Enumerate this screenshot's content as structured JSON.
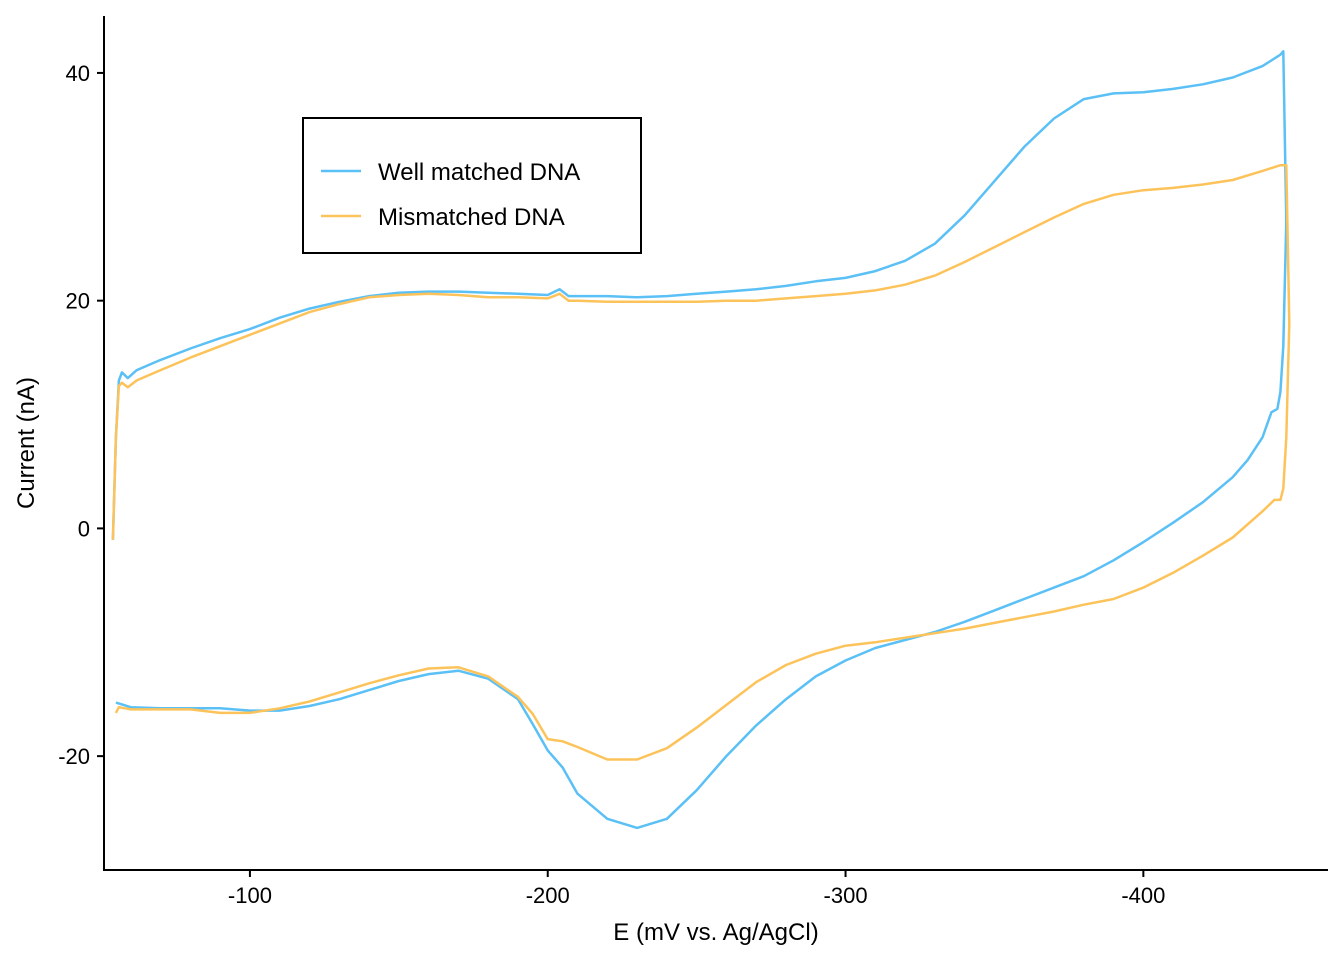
{
  "chart_data": {
    "type": "line",
    "xlabel": "E (mV vs. Ag/AgCl)",
    "ylabel": "Current (nA)",
    "xlim": [
      -51,
      -462
    ],
    "ylim": [
      -30,
      45
    ],
    "x_ticks": [
      -100,
      -200,
      -300,
      -400
    ],
    "y_ticks": [
      -20,
      0,
      20,
      40
    ],
    "x_tick_labels": [
      "-100",
      "-200",
      "-300",
      "-400"
    ],
    "y_tick_labels": [
      "-20",
      "0",
      "20",
      "40"
    ],
    "grid": false,
    "legend_position": "top-left",
    "series": [
      {
        "name": "Well matched DNA",
        "color": "#5BC0F5",
        "points": [
          [
            -54,
            -1
          ],
          [
            -55,
            8
          ],
          [
            -56,
            13
          ],
          [
            -57,
            13.7
          ],
          [
            -59,
            13.2
          ],
          [
            -62,
            13.9
          ],
          [
            -70,
            14.8
          ],
          [
            -80,
            15.8
          ],
          [
            -90,
            16.7
          ],
          [
            -100,
            17.5
          ],
          [
            -110,
            18.5
          ],
          [
            -120,
            19.3
          ],
          [
            -130,
            19.9
          ],
          [
            -140,
            20.4
          ],
          [
            -150,
            20.7
          ],
          [
            -160,
            20.8
          ],
          [
            -170,
            20.8
          ],
          [
            -180,
            20.7
          ],
          [
            -190,
            20.6
          ],
          [
            -200,
            20.5
          ],
          [
            -204,
            21.0
          ],
          [
            -207,
            20.4
          ],
          [
            -210,
            20.4
          ],
          [
            -220,
            20.4
          ],
          [
            -230,
            20.3
          ],
          [
            -240,
            20.4
          ],
          [
            -250,
            20.6
          ],
          [
            -260,
            20.8
          ],
          [
            -270,
            21.0
          ],
          [
            -280,
            21.3
          ],
          [
            -290,
            21.7
          ],
          [
            -300,
            22.0
          ],
          [
            -310,
            22.6
          ],
          [
            -320,
            23.5
          ],
          [
            -330,
            25.0
          ],
          [
            -340,
            27.5
          ],
          [
            -350,
            30.5
          ],
          [
            -360,
            33.5
          ],
          [
            -370,
            36.0
          ],
          [
            -380,
            37.7
          ],
          [
            -390,
            38.2
          ],
          [
            -400,
            38.3
          ],
          [
            -410,
            38.6
          ],
          [
            -420,
            39.0
          ],
          [
            -430,
            39.6
          ],
          [
            -440,
            40.6
          ],
          [
            -446,
            41.6
          ],
          [
            -447,
            41.9
          ],
          [
            -448,
            27
          ],
          [
            -447,
            16
          ],
          [
            -446,
            12
          ],
          [
            -445,
            10.5
          ],
          [
            -443,
            10.2
          ],
          [
            -440,
            8
          ],
          [
            -435,
            6
          ],
          [
            -430,
            4.5
          ],
          [
            -420,
            2.3
          ],
          [
            -410,
            0.5
          ],
          [
            -400,
            -1.2
          ],
          [
            -390,
            -2.8
          ],
          [
            -380,
            -4.2
          ],
          [
            -370,
            -5.2
          ],
          [
            -360,
            -6.2
          ],
          [
            -350,
            -7.2
          ],
          [
            -340,
            -8.2
          ],
          [
            -330,
            -9.1
          ],
          [
            -320,
            -9.8
          ],
          [
            -310,
            -10.5
          ],
          [
            -300,
            -11.6
          ],
          [
            -290,
            -13.0
          ],
          [
            -280,
            -15.0
          ],
          [
            -270,
            -17.3
          ],
          [
            -260,
            -20.0
          ],
          [
            -250,
            -23.0
          ],
          [
            -240,
            -25.5
          ],
          [
            -230,
            -26.3
          ],
          [
            -220,
            -25.5
          ],
          [
            -210,
            -23.3
          ],
          [
            -205,
            -21.0
          ],
          [
            -200,
            -19.5
          ],
          [
            -195,
            -17.2
          ],
          [
            -190,
            -15.0
          ],
          [
            -180,
            -13.2
          ],
          [
            -170,
            -12.5
          ],
          [
            -160,
            -12.8
          ],
          [
            -150,
            -13.4
          ],
          [
            -140,
            -14.2
          ],
          [
            -130,
            -15.0
          ],
          [
            -120,
            -15.6
          ],
          [
            -110,
            -16.0
          ],
          [
            -100,
            -16.0
          ],
          [
            -90,
            -15.8
          ],
          [
            -80,
            -15.8
          ],
          [
            -70,
            -15.8
          ],
          [
            -60,
            -15.7
          ],
          [
            -55,
            -15.3
          ]
        ]
      },
      {
        "name": "Mismatched DNA",
        "color": "#FDC35B",
        "points": [
          [
            -54,
            -1
          ],
          [
            -55,
            8
          ],
          [
            -56,
            12.5
          ],
          [
            -57,
            12.8
          ],
          [
            -59,
            12.4
          ],
          [
            -62,
            13.0
          ],
          [
            -70,
            13.9
          ],
          [
            -80,
            15.0
          ],
          [
            -90,
            16.0
          ],
          [
            -100,
            17.0
          ],
          [
            -110,
            18.0
          ],
          [
            -120,
            19.0
          ],
          [
            -130,
            19.7
          ],
          [
            -140,
            20.3
          ],
          [
            -150,
            20.5
          ],
          [
            -160,
            20.6
          ],
          [
            -170,
            20.5
          ],
          [
            -180,
            20.3
          ],
          [
            -190,
            20.3
          ],
          [
            -200,
            20.2
          ],
          [
            -204,
            20.6
          ],
          [
            -207,
            20.0
          ],
          [
            -210,
            20.0
          ],
          [
            -220,
            19.9
          ],
          [
            -230,
            19.9
          ],
          [
            -240,
            19.9
          ],
          [
            -250,
            19.9
          ],
          [
            -260,
            20.0
          ],
          [
            -270,
            20.0
          ],
          [
            -280,
            20.2
          ],
          [
            -290,
            20.4
          ],
          [
            -300,
            20.6
          ],
          [
            -310,
            20.9
          ],
          [
            -320,
            21.4
          ],
          [
            -330,
            22.2
          ],
          [
            -340,
            23.4
          ],
          [
            -350,
            24.7
          ],
          [
            -360,
            26.0
          ],
          [
            -370,
            27.3
          ],
          [
            -380,
            28.5
          ],
          [
            -390,
            29.3
          ],
          [
            -400,
            29.7
          ],
          [
            -410,
            29.9
          ],
          [
            -420,
            30.2
          ],
          [
            -430,
            30.6
          ],
          [
            -440,
            31.4
          ],
          [
            -446,
            31.9
          ],
          [
            -448,
            31.9
          ],
          [
            -449,
            18
          ],
          [
            -448,
            8
          ],
          [
            -447,
            3.5
          ],
          [
            -446,
            2.5
          ],
          [
            -444,
            2.5
          ],
          [
            -440,
            1.5
          ],
          [
            -430,
            -0.8
          ],
          [
            -420,
            -2.4
          ],
          [
            -410,
            -3.9
          ],
          [
            -400,
            -5.2
          ],
          [
            -390,
            -6.2
          ],
          [
            -380,
            -6.7
          ],
          [
            -370,
            -7.3
          ],
          [
            -360,
            -7.8
          ],
          [
            -350,
            -8.3
          ],
          [
            -340,
            -8.8
          ],
          [
            -330,
            -9.2
          ],
          [
            -320,
            -9.6
          ],
          [
            -310,
            -10.0
          ],
          [
            -300,
            -10.3
          ],
          [
            -290,
            -11.0
          ],
          [
            -280,
            -12.0
          ],
          [
            -270,
            -13.5
          ],
          [
            -260,
            -15.5
          ],
          [
            -250,
            -17.5
          ],
          [
            -240,
            -19.3
          ],
          [
            -230,
            -20.3
          ],
          [
            -220,
            -20.3
          ],
          [
            -210,
            -19.2
          ],
          [
            -205,
            -18.7
          ],
          [
            -200,
            -18.5
          ],
          [
            -195,
            -16.3
          ],
          [
            -190,
            -14.8
          ],
          [
            -180,
            -13.0
          ],
          [
            -170,
            -12.2
          ],
          [
            -160,
            -12.3
          ],
          [
            -150,
            -12.9
          ],
          [
            -140,
            -13.6
          ],
          [
            -130,
            -14.4
          ],
          [
            -120,
            -15.2
          ],
          [
            -110,
            -15.8
          ],
          [
            -100,
            -16.2
          ],
          [
            -90,
            -16.2
          ],
          [
            -80,
            -15.9
          ],
          [
            -70,
            -15.9
          ],
          [
            -60,
            -15.9
          ],
          [
            -56,
            -15.7
          ],
          [
            -55,
            -16.2
          ]
        ]
      }
    ]
  }
}
